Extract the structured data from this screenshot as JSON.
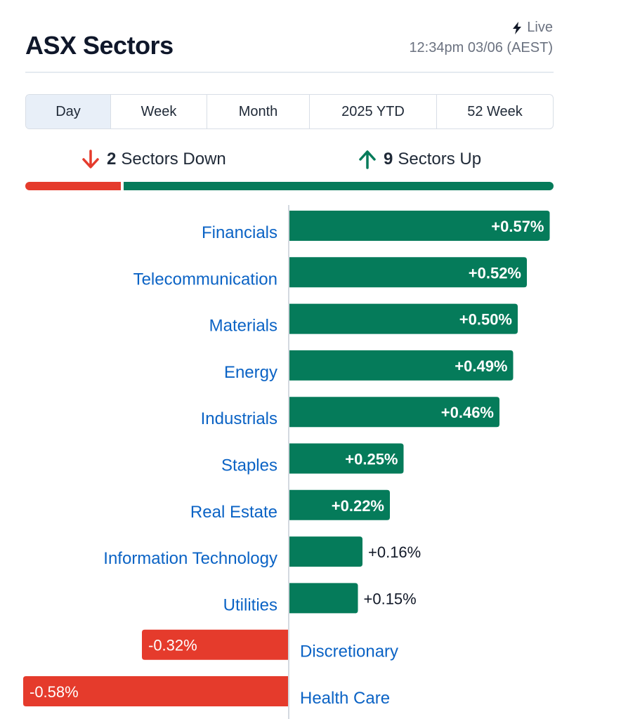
{
  "header": {
    "title": "ASX Sectors",
    "live_label": "Live",
    "timestamp": "12:34pm 03/06 (AEST)"
  },
  "tabs": [
    {
      "label": "Day",
      "active": true
    },
    {
      "label": "Week",
      "active": false
    },
    {
      "label": "Month",
      "active": false
    },
    {
      "label": "2025 YTD",
      "active": false
    },
    {
      "label": "52 Week",
      "active": false
    }
  ],
  "summary": {
    "down_count": "2",
    "down_text": "Sectors Down",
    "up_count": "9",
    "up_text": "Sectors Up"
  },
  "colors": {
    "up": "#057b5a",
    "down": "#e53b2c",
    "link": "#0b63c5"
  },
  "chart_data": {
    "type": "bar",
    "orientation": "horizontal",
    "title": "ASX Sectors",
    "categories": [
      "Financials",
      "Telecommunication",
      "Materials",
      "Energy",
      "Industrials",
      "Staples",
      "Real Estate",
      "Information Technology",
      "Utilities",
      "Discretionary",
      "Health Care"
    ],
    "values": [
      0.57,
      0.52,
      0.5,
      0.49,
      0.46,
      0.25,
      0.22,
      0.16,
      0.15,
      -0.32,
      -0.58
    ],
    "value_labels": [
      "+0.57%",
      "+0.52%",
      "+0.50%",
      "+0.49%",
      "+0.46%",
      "+0.25%",
      "+0.22%",
      "+0.16%",
      "+0.15%",
      "-0.32%",
      "-0.58%"
    ],
    "xlabel": "",
    "ylabel": "",
    "xlim": [
      -0.58,
      0.57
    ]
  }
}
